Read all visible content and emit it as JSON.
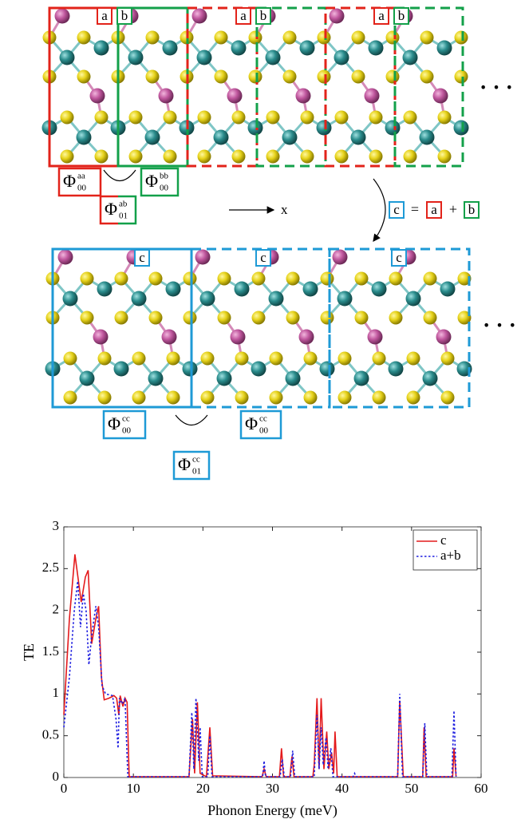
{
  "diagram": {
    "cell_labels": [
      "a",
      "b",
      "c"
    ],
    "phi_symbol": "Φ",
    "phi_terms": [
      {
        "sup": "aa",
        "sub": "00"
      },
      {
        "sup": "bb",
        "sub": "00"
      },
      {
        "sup": "ab",
        "sub": "01"
      },
      {
        "sup": "cc",
        "sub": "00"
      },
      {
        "sup": "cc",
        "sub": "01"
      }
    ],
    "axis_label": "x",
    "equation": [
      "c",
      "=",
      "a",
      "+",
      "b"
    ],
    "ellipsis": "· · ·"
  },
  "chart_data": {
    "type": "line",
    "xlabel": "Phonon Energy (meV)",
    "ylabel": "TE",
    "xlim": [
      0,
      60
    ],
    "ylim": [
      0,
      3
    ],
    "xticks": [
      0,
      10,
      20,
      30,
      40,
      50,
      60
    ],
    "yticks": [
      0,
      0.5,
      1,
      1.5,
      2,
      2.5,
      3
    ],
    "legend": "upper right",
    "series": [
      {
        "name": "c",
        "color": "#e41a1c",
        "dash": "solid",
        "x": [
          0,
          0.8,
          1.6,
          2.5,
          3.1,
          3.5,
          4.0,
          4.6,
          5.0,
          5.4,
          5.8,
          6.5,
          7.2,
          7.6,
          7.9,
          8.1,
          8.5,
          8.8,
          9.1,
          9.4,
          18,
          18.5,
          18.8,
          19.2,
          19.6,
          20.5,
          21,
          21.4,
          28.5,
          28.8,
          29.1,
          31,
          31.3,
          31.6,
          32.5,
          32.8,
          33.1,
          35.8,
          36,
          36.4,
          36.7,
          37,
          37.4,
          37.8,
          38.1,
          38.5,
          38.8,
          39,
          39.3,
          48,
          48.3,
          48.8,
          51.6,
          51.8,
          52.1,
          55.9,
          56.1,
          56.4
        ],
        "values": [
          0.75,
          1.9,
          2.67,
          2.1,
          2.4,
          2.48,
          1.6,
          1.9,
          2.05,
          1.2,
          0.93,
          0.95,
          0.98,
          0.95,
          0.75,
          0.98,
          0.85,
          0.95,
          0.9,
          0.01,
          0.01,
          0.7,
          0.05,
          0.9,
          0.05,
          0.01,
          0.6,
          0.02,
          0.01,
          0.1,
          0.01,
          0.01,
          0.35,
          0.01,
          0.01,
          0.25,
          0.01,
          0.01,
          0.15,
          0.95,
          0.1,
          0.95,
          0.1,
          0.55,
          0.1,
          0.3,
          0.05,
          0.55,
          0.01,
          0.01,
          0.92,
          0.01,
          0.01,
          0.6,
          0.01,
          0.01,
          0.35,
          0.01
        ]
      },
      {
        "name": "a+b",
        "color": "#1f1fe0",
        "dash": "dotted",
        "x": [
          0,
          0.8,
          1.5,
          2.0,
          2.4,
          2.8,
          3.2,
          3.6,
          4.0,
          4.6,
          5.0,
          5.5,
          6.0,
          7.0,
          7.5,
          7.8,
          8.0,
          8.4,
          8.8,
          9.2,
          18,
          18.4,
          18.7,
          19.0,
          19.4,
          19.6,
          19.9,
          20.7,
          21.0,
          21.3,
          28.6,
          28.8,
          29.0,
          31.1,
          31.4,
          31.7,
          32.6,
          32.9,
          33.2,
          36.0,
          36.4,
          36.7,
          37.0,
          37.3,
          37.7,
          38.0,
          38.4,
          38.7,
          41.6,
          41.8,
          42.0,
          48,
          48.3,
          48.7,
          51.6,
          51.9,
          52.2,
          55.8,
          56.1,
          56.4
        ],
        "values": [
          0.6,
          1.2,
          2.0,
          2.35,
          1.8,
          2.2,
          2.0,
          1.35,
          1.7,
          2.05,
          1.8,
          1.1,
          1.0,
          0.98,
          0.7,
          0.35,
          0.95,
          0.88,
          0.95,
          0.01,
          0.01,
          0.78,
          0.1,
          0.95,
          0.2,
          0.6,
          0.01,
          0.01,
          0.5,
          0.01,
          0.01,
          0.2,
          0.01,
          0.01,
          0.22,
          0.01,
          0.01,
          0.32,
          0.01,
          0.01,
          0.75,
          0.1,
          0.6,
          0.15,
          0.48,
          0.1,
          0.35,
          0.01,
          0.01,
          0.05,
          0.01,
          0.01,
          1.0,
          0.01,
          0.01,
          0.65,
          0.01,
          0.01,
          0.8,
          0.01
        ]
      }
    ]
  }
}
